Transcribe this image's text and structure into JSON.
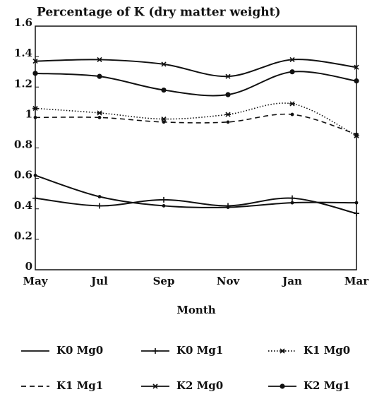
{
  "chart_data": {
    "type": "line",
    "title": "Percentage of K  (dry matter weight)",
    "x_label": "Month",
    "categories": [
      "May",
      "Jul",
      "Sep",
      "Nov",
      "Jan",
      "Mar"
    ],
    "ylim": [
      0,
      1.6
    ],
    "yticks": [
      0,
      0.2,
      0.4,
      0.6,
      0.8,
      1,
      1.2,
      1.4,
      1.6
    ],
    "series": [
      {
        "name": "K0 Mg0",
        "color": "#111111",
        "style": "solid",
        "marker": "none",
        "values": [
          0.62,
          0.48,
          0.42,
          0.41,
          0.44,
          0.44
        ]
      },
      {
        "name": "K0 Mg1",
        "color": "#111111",
        "style": "solid",
        "marker": "plus",
        "values": [
          0.47,
          0.42,
          0.46,
          0.42,
          0.47,
          0.37
        ]
      },
      {
        "name": "K1 Mg0",
        "color": "#111111",
        "style": "dotted",
        "marker": "star",
        "values": [
          1.06,
          1.03,
          0.99,
          1.02,
          1.09,
          0.88
        ]
      },
      {
        "name": "K1 Mg1",
        "color": "#111111",
        "style": "dashed",
        "marker": "none",
        "values": [
          1.0,
          1.0,
          0.97,
          0.97,
          1.02,
          0.89
        ]
      },
      {
        "name": "K2 Mg0",
        "color": "#111111",
        "style": "solid",
        "marker": "x",
        "values": [
          1.37,
          1.38,
          1.35,
          1.27,
          1.38,
          1.33
        ]
      },
      {
        "name": "K2 Mg1",
        "color": "#111111",
        "style": "solid",
        "marker": "dot",
        "values": [
          1.29,
          1.27,
          1.18,
          1.15,
          1.3,
          1.24
        ]
      }
    ]
  }
}
